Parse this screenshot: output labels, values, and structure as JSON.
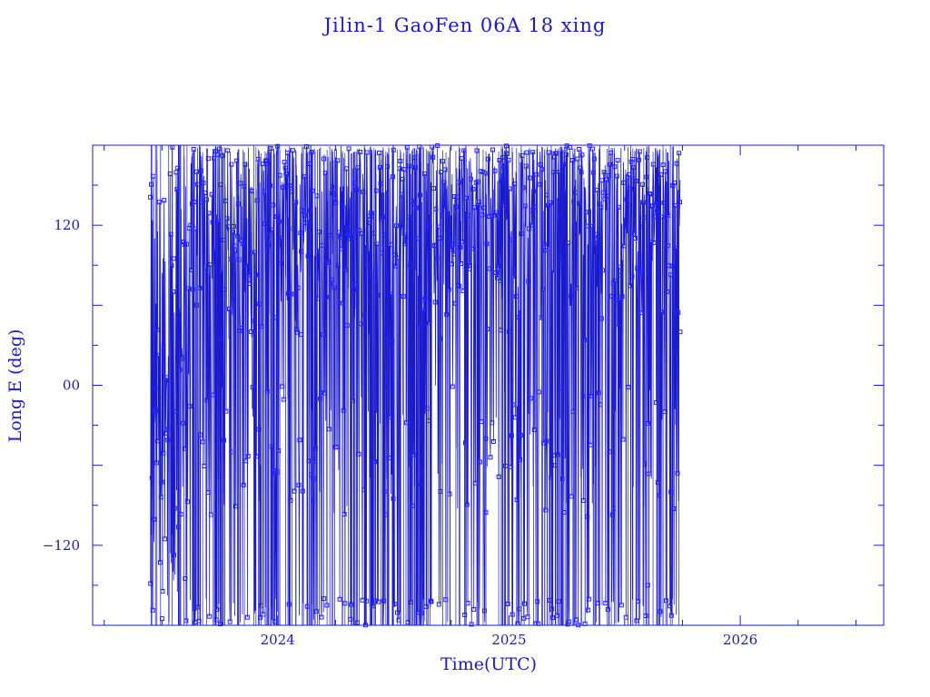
{
  "chart_data": {
    "type": "scatter",
    "title": "Jilin-1 GaoFen 06A 18 xing",
    "xlabel": "Time(UTC)",
    "ylabel": "Long E (deg)",
    "xlim": [
      2023.2,
      2026.62
    ],
    "ylim": [
      -180,
      180
    ],
    "x_ticks": [
      "2024",
      "2025",
      "2026"
    ],
    "y_ticks": [
      "120",
      "00",
      "−120"
    ],
    "grid": false,
    "marker": "square",
    "connected": true,
    "data_start": 2023.45,
    "data_end": 2025.74,
    "upper_band_lon": [
      30,
      180
    ],
    "upper_band_from": 2023.62,
    "sample_series": [
      {
        "x": 2023.45,
        "y": 141
      },
      {
        "x": 2023.47,
        "y": -20
      },
      {
        "x": 2023.5,
        "y": -175
      },
      {
        "x": 2023.55,
        "y": 95
      },
      {
        "x": 2023.6,
        "y": -145
      },
      {
        "x": 2023.65,
        "y": 60
      },
      {
        "x": 2023.7,
        "y": 170
      },
      {
        "x": 2023.75,
        "y": 35
      },
      {
        "x": 2023.8,
        "y": -50
      },
      {
        "x": 2023.9,
        "y": 40
      },
      {
        "x": 2024.0,
        "y": -65
      },
      {
        "x": 2024.1,
        "y": 38
      },
      {
        "x": 2024.2,
        "y": -160
      },
      {
        "x": 2024.3,
        "y": 45
      },
      {
        "x": 2024.5,
        "y": -85
      },
      {
        "x": 2024.7,
        "y": 35
      },
      {
        "x": 2024.9,
        "y": -40
      },
      {
        "x": 2025.0,
        "y": 40
      },
      {
        "x": 2025.2,
        "y": -60
      },
      {
        "x": 2025.4,
        "y": 50
      },
      {
        "x": 2025.6,
        "y": -150
      },
      {
        "x": 2025.7,
        "y": -80
      },
      {
        "x": 2025.74,
        "y": 40
      }
    ]
  }
}
